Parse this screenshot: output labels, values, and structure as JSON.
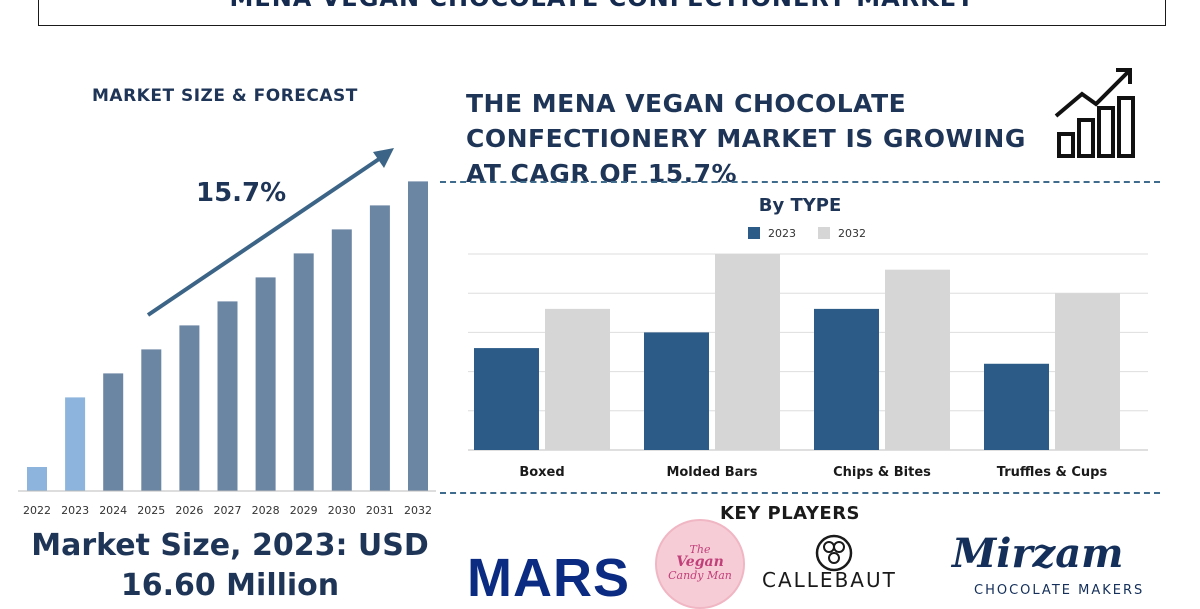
{
  "title": "MENA VEGAN CHOCOLATE CONFECTIONERY MARKET",
  "left_panel": {
    "heading": "MARKET SIZE & FORECAST",
    "cagr_label": "15.7%",
    "market_size_line1": "Market Size, 2023: USD",
    "market_size_line2": "16.60 Million"
  },
  "right_panel": {
    "heading_lines": [
      "THE MENA VEGAN CHOCOLATE",
      "CONFECTIONERY MARKET IS GROWING",
      "AT CAGR OF 15.7%"
    ],
    "growth_icon": "bar-chart-arrow-icon"
  },
  "key_players": {
    "title": "KEY PLAYERS",
    "mars": "MARS",
    "vegan_candy_man": [
      "The",
      "Vegan",
      "Candy Man"
    ],
    "callebaut": "CALLEBAUT",
    "mirzam": "Mirzam",
    "mirzam_sub": "CHOCOLATE MAKERS"
  },
  "chart_data": [
    {
      "type": "bar",
      "categories": [
        "2022",
        "2023",
        "2024",
        "2025",
        "2026",
        "2027",
        "2028",
        "2029",
        "2030",
        "2031",
        "2032"
      ],
      "values": [
        1,
        3.9,
        4.9,
        5.9,
        6.9,
        7.9,
        8.9,
        9.9,
        10.9,
        11.9,
        12.9
      ],
      "highlight_colors": [
        "#8db4dc",
        "#8db4dc",
        "#6b86a3",
        "#6b86a3",
        "#6b86a3",
        "#6b86a3",
        "#6b86a3",
        "#6b86a3",
        "#6b86a3",
        "#6b86a3",
        "#6b86a3"
      ],
      "ylim": [
        0,
        14
      ],
      "grid": false,
      "annotation": "15.7%"
    },
    {
      "type": "bar",
      "title": "By TYPE",
      "categories": [
        "Boxed",
        "Molded Bars",
        "Chips & Bites",
        "Truffles & Cups"
      ],
      "series": [
        {
          "name": "2023",
          "values": [
            2.6,
            3.0,
            3.6,
            2.2
          ],
          "color": "#2d5b88"
        },
        {
          "name": "2032",
          "values": [
            3.6,
            5.0,
            4.6,
            4.0
          ],
          "color": "#d6d6d6"
        }
      ],
      "ylim": [
        0,
        5
      ],
      "grid": true,
      "legend": "top-center"
    }
  ]
}
